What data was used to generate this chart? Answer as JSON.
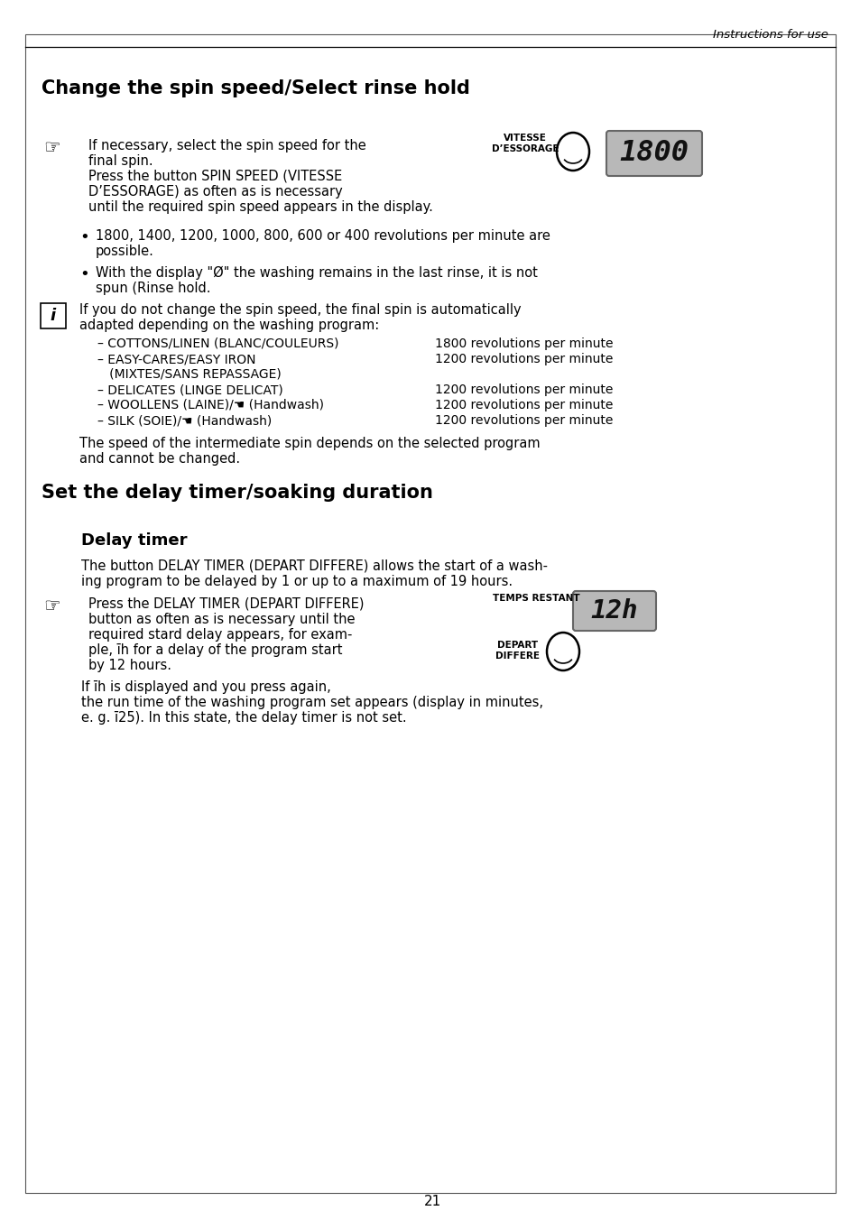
{
  "page_number": "21",
  "header_text": "Instructions for use",
  "title1": "Change the spin speed/Select rinse hold",
  "title2": "Set the delay timer/soaking duration",
  "subtitle1": "Delay timer",
  "bg_color": "#ffffff",
  "line1_sec1": "If necessary, select the spin speed for the",
  "line2_sec1": "final spin.",
  "line3_sec1": "Press the button SPIN SPEED (VITESSE",
  "line4_sec1": "D’ESSORAGE) as often as is necessary",
  "line5_sec1": "until the required spin speed appears in the display.",
  "bullet1_line1": "1800, 1400, 1200, 1000, 800, 600 or 400 revolutions per minute are",
  "bullet1_line2": "possible.",
  "bullet2_line1": "With the display \"Ð\" the washing remains in the last rinse, it is not",
  "bullet2_line2": "spun (Rinse hold.",
  "info_line1": "If you do not change the spin speed, the final spin is automatically",
  "info_line2": "adapted depending on the washing program:",
  "prog1_left": "– COTTONS/LINEN (BLANC/COULEURS)",
  "prog1_right": "1800 revolutions per minute",
  "prog2_left": "– EASY-CARES/EASY IRON",
  "prog2_right": "1200 revolutions per minute",
  "prog2b_left": "   (MIXTES/SANS REPASSAGE)",
  "prog3_left": "– DELICATES (LINGE DELICAT)",
  "prog3_right": "1200 revolutions per minute",
  "prog4_left": "– WOOLLENS (LAINE)/☚ (Handwash)",
  "prog4_right": "1200 revolutions per minute",
  "prog5_left": "– SILK (SOIE)/☚ (Handwash)",
  "prog5_right": "1200 revolutions per minute",
  "speed_note1": "The speed of the intermediate spin depends on the selected program",
  "speed_note2": "and cannot be changed.",
  "vitesse_label1": "VITESSE",
  "vitesse_label2": "D’ESSORAGE",
  "lcd1_text": "1800",
  "delay_intro1": "The button DELAY TIMER (DEPART DIFFERE) allows the start of a wash-",
  "delay_intro2": "ing program to be delayed by 1 or up to a maximum of 19 hours.",
  "delay_line1": "Press the DELAY TIMER (DEPART DIFFERE)",
  "delay_line2": "button as often as is necessary until the",
  "delay_line3": "required stard delay appears, for exam-",
  "delay_line4": "ple, īh for a delay of the program start",
  "delay_line5": "by 12 hours.",
  "temps_label": "TEMPS RESTANT",
  "lcd2_text": "12h",
  "depart_label1": "DEPART",
  "depart_label2": "DIFFERE",
  "end_line1": "If īh is displayed and you press again,",
  "end_line2": "the run time of the washing program set appears (display in minutes,",
  "end_line3": "e. g. ī25). In this state, the delay timer is not set."
}
